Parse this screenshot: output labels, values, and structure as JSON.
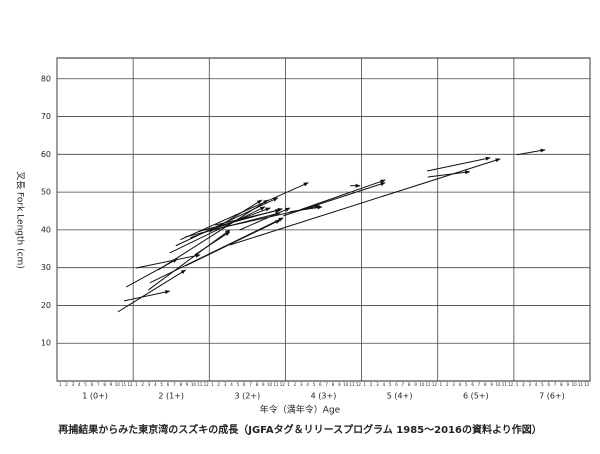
{
  "chart_data": {
    "type": "arrow",
    "caption": "再捕結果からみた東京湾のスズキの成長（JGFAタグ＆リリースプログラム 1985～2016の資料より作図）",
    "xlabel": "年令（満年令）Age",
    "ylabel": "叉長 Fork Length (cm)",
    "age_labels": [
      "1 (0+)",
      "2 (1+)",
      "3 (2+)",
      "4 (3+)",
      "5 (4+)",
      "6 (5+)",
      "7 (6+)"
    ],
    "month_labels": [
      "1",
      "2",
      "3",
      "4",
      "5",
      "6",
      "7",
      "8",
      "9",
      "10",
      "11",
      "12"
    ],
    "xlim": [
      0,
      7
    ],
    "xticks": [
      0,
      1,
      2,
      3,
      4,
      5,
      6,
      7
    ],
    "ylim": [
      0,
      85.5
    ],
    "yticks": [
      10,
      20,
      30,
      40,
      50,
      60,
      70,
      80
    ],
    "grid": true,
    "color": "#111111",
    "arrows": [
      {
        "x": [
          0.8,
          1.69
        ],
        "y": [
          18.3,
          29.4
        ]
      },
      {
        "x": [
          0.88,
          1.48
        ],
        "y": [
          21.2,
          23.8
        ]
      },
      {
        "x": [
          1.04,
          1.88
        ],
        "y": [
          29.9,
          33.4
        ]
      },
      {
        "x": [
          0.91,
          1.58
        ],
        "y": [
          24.9,
          32.3
        ]
      },
      {
        "x": [
          1.2,
          2.27
        ],
        "y": [
          24.1,
          40.0
        ]
      },
      {
        "x": [
          1.22,
          2.97
        ],
        "y": [
          26.0,
          43.2
        ]
      },
      {
        "x": [
          1.33,
          2.77
        ],
        "y": [
          29.4,
          47.9
        ]
      },
      {
        "x": [
          1.48,
          2.73
        ],
        "y": [
          33.9,
          46.1
        ]
      },
      {
        "x": [
          1.56,
          2.9
        ],
        "y": [
          35.8,
          48.5
        ]
      },
      {
        "x": [
          1.62,
          3.3
        ],
        "y": [
          37.4,
          52.5
        ]
      },
      {
        "x": [
          1.68,
          2.93
        ],
        "y": [
          38.1,
          44.5
        ]
      },
      {
        "x": [
          1.75,
          2.8
        ],
        "y": [
          37.9,
          45.8
        ]
      },
      {
        "x": [
          1.85,
          2.96
        ],
        "y": [
          39.5,
          45.6
        ]
      },
      {
        "x": [
          2.01,
          2.69
        ],
        "y": [
          39.5,
          47.9
        ]
      },
      {
        "x": [
          2.08,
          2.93
        ],
        "y": [
          41.3,
          45.3
        ]
      },
      {
        "x": [
          2.14,
          3.45
        ],
        "y": [
          40.5,
          46.4
        ]
      },
      {
        "x": [
          1.69,
          2.93
        ],
        "y": [
          30.5,
          42.6
        ]
      },
      {
        "x": [
          1.81,
          2.27
        ],
        "y": [
          33.4,
          39.5
        ]
      },
      {
        "x": [
          2.4,
          3.06
        ],
        "y": [
          40.0,
          45.8
        ]
      },
      {
        "x": [
          2.97,
          4.31
        ],
        "y": [
          43.7,
          52.5
        ]
      },
      {
        "x": [
          3.19,
          4.31
        ],
        "y": [
          45.3,
          53.2
        ]
      },
      {
        "x": [
          3.85,
          3.98
        ],
        "y": [
          51.7,
          51.7
        ]
      },
      {
        "x": [
          4.86,
          5.69
        ],
        "y": [
          55.6,
          59.1
        ]
      },
      {
        "x": [
          4.87,
          5.42
        ],
        "y": [
          54.0,
          55.4
        ]
      },
      {
        "x": [
          6.04,
          6.41
        ],
        "y": [
          59.9,
          61.2
        ]
      },
      {
        "x": [
          2.27,
          5.82
        ],
        "y": [
          36.0,
          58.8
        ]
      },
      {
        "x": [
          3.06,
          3.48
        ],
        "y": [
          44.8,
          46.1
        ]
      }
    ]
  }
}
